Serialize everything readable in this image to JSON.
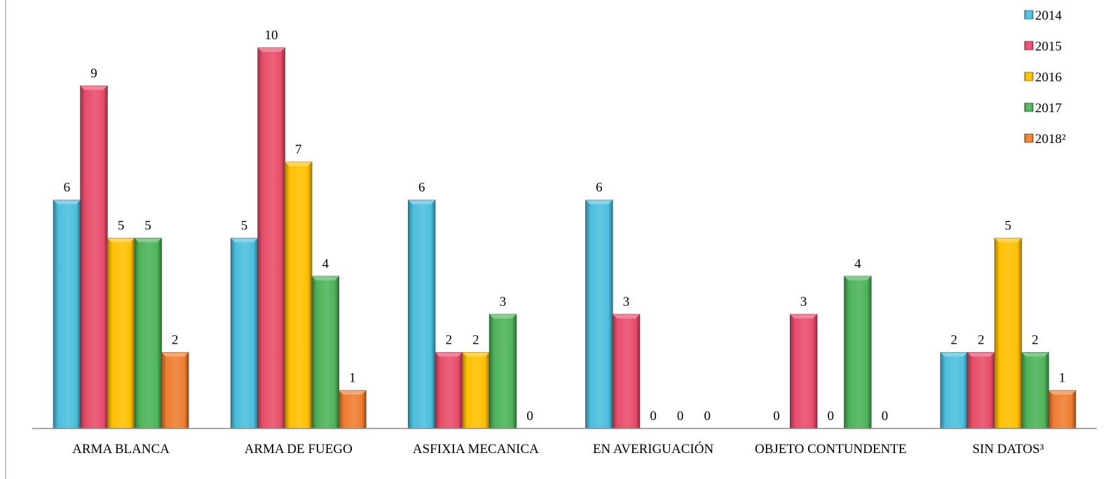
{
  "chart_data": {
    "type": "bar",
    "categories": [
      "ARMA BLANCA",
      "ARMA DE FUEGO",
      "ASFIXIA MECANICA",
      "EN AVERIGUACIÓN",
      "OBJETO CONTUNDENTE",
      "SIN DATOS³"
    ],
    "series": [
      {
        "name": "2014",
        "color": "#4BBEDD",
        "values": [
          6,
          5,
          6,
          6,
          0,
          2
        ]
      },
      {
        "name": "2015",
        "color": "#E84D6A",
        "values": [
          9,
          10,
          2,
          3,
          3,
          2
        ]
      },
      {
        "name": "2016",
        "color": "#FFC000",
        "values": [
          5,
          7,
          2,
          0,
          0,
          5
        ]
      },
      {
        "name": "2017",
        "color": "#4DB35A",
        "values": [
          5,
          4,
          3,
          0,
          4,
          2
        ]
      },
      {
        "name": "2018²",
        "color": "#EE7D30",
        "values": [
          2,
          1,
          0,
          0,
          0,
          1
        ]
      }
    ],
    "ylim": [
      0,
      10
    ],
    "grid": false,
    "data_labels": true,
    "legend": "top-right"
  }
}
